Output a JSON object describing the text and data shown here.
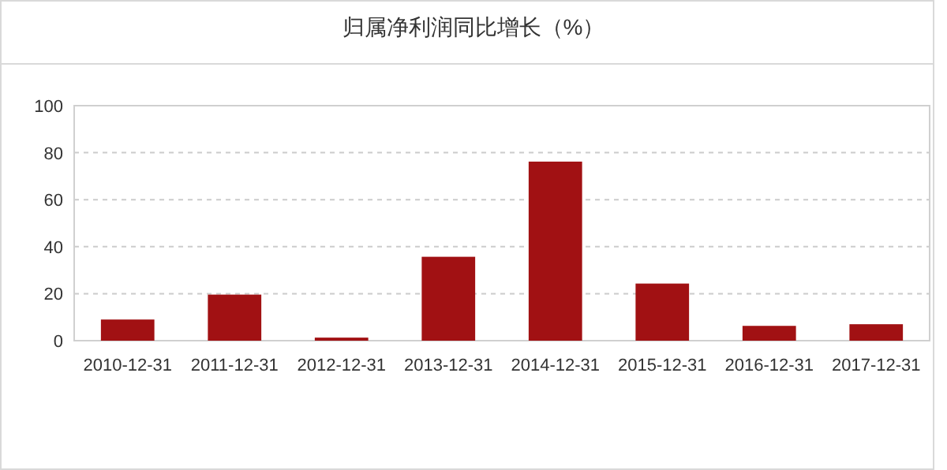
{
  "chart_data": {
    "type": "bar",
    "title": "归属净利润同比增长（%）",
    "categories": [
      "2010-12-31",
      "2011-12-31",
      "2012-12-31",
      "2013-12-31",
      "2014-12-31",
      "2015-12-31",
      "2016-12-31",
      "2017-12-31"
    ],
    "values": [
      9.0,
      19.6,
      1.3,
      35.7,
      76.2,
      24.3,
      6.3,
      7.0
    ],
    "color": "#a11113",
    "ylim": [
      0,
      100
    ],
    "yticks": [
      0,
      20,
      40,
      60,
      80,
      100
    ],
    "grid": "y"
  }
}
